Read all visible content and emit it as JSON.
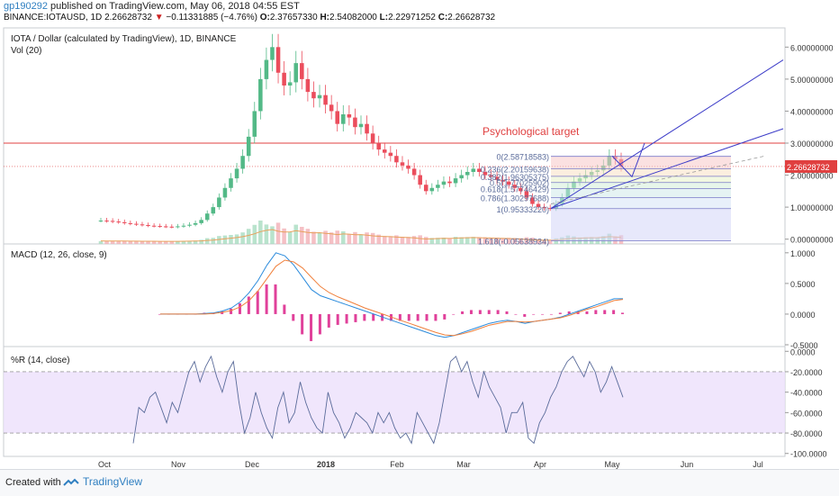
{
  "header": {
    "user": "gp190292",
    "published_text": "published on TradingView.com, May 06, 2018 04:55 EST",
    "symbol": "BINANCE:IOTAUSD, 1D",
    "last": "2.26628732",
    "change_arrow": "▼",
    "change": "−0.11331885 (−4.76%)",
    "o_label": "O:",
    "o_value": "2.37657330",
    "h_label": "H:",
    "h_value": "2.54082000",
    "l_label": "L:",
    "l_value": "2.22971252",
    "c_label": "C:",
    "c_value": "2.26628732"
  },
  "footer": {
    "created_with": "Created with",
    "brand": "TradingView"
  },
  "colors": {
    "up": "#53b987",
    "down": "#eb4d5c",
    "wick": "#eb4d5c",
    "ma": "#e8a15c",
    "macd": "#2b8bdc",
    "signal": "#f0803c",
    "hist": "#e0409a",
    "wr": "#5a6b9a",
    "trend": "#3c3cc8",
    "target": "#e04040",
    "price_tag": "#e04040"
  },
  "chart_data": [
    {
      "type": "line",
      "title": "IOTA / Dollar (calculated by TradingView), 1D, BINANCE",
      "subtitle": "Vol (20)",
      "x_ticks": [
        "Oct",
        "Nov",
        "Dec",
        "2018",
        "Feb",
        "Mar",
        "Apr",
        "May",
        "Jun",
        "Jul"
      ],
      "y_ticks": [
        "6.00000000",
        "5.00000000",
        "4.00000000",
        "3.00000000",
        "2.00000000",
        "1.00000000",
        "0.00000000"
      ],
      "ylim": [
        -0.15,
        6.6
      ],
      "price_label": "2.26628732",
      "annotation": "Psychological target",
      "target_level": 3.0,
      "series": [
        {
          "values": [
            0.58,
            0.57,
            0.55,
            0.53,
            0.5,
            0.48,
            0.46,
            0.44,
            0.42,
            0.41,
            0.4,
            0.39,
            0.38,
            0.4,
            0.42,
            0.45,
            0.5,
            0.6,
            0.8,
            1.0,
            1.3,
            1.6,
            1.9,
            2.2,
            2.6,
            3.2,
            4.0,
            5.0,
            5.6,
            6.0,
            5.2,
            4.8,
            4.9,
            5.5,
            5.0,
            4.6,
            4.4,
            4.5,
            4.2,
            4.0,
            3.6,
            3.9,
            3.8,
            3.5,
            3.6,
            3.3,
            3.0,
            2.8,
            2.7,
            2.6,
            2.4,
            2.3,
            2.2,
            2.0,
            1.7,
            1.5,
            1.6,
            1.7,
            1.8,
            1.75,
            1.9,
            2.0,
            2.1,
            2.2,
            2.1,
            2.0,
            1.95,
            1.85,
            1.8,
            1.7,
            1.6,
            1.5,
            1.3,
            1.1,
            1.0,
            0.97,
            0.96,
            1.1,
            1.3,
            1.6,
            1.8,
            1.9,
            2.0,
            2.1,
            2.15,
            2.3,
            2.6,
            2.5,
            2.27
          ]
        }
      ],
      "fib_levels": [
        {
          "ratio": "0",
          "label": "0(2.58718583)",
          "value": 2.587
        },
        {
          "ratio": "0.236",
          "label": "0.236(2.20159638)",
          "value": 2.2016
        },
        {
          "ratio": "0.382",
          "label": "0.382(1.96305375)",
          "value": 1.963
        },
        {
          "ratio": "0.5",
          "label": "0.5(1.77025902)",
          "value": 1.77
        },
        {
          "ratio": "0.618",
          "label": "0.618(1.57746429)",
          "value": 1.577
        },
        {
          "ratio": "0.786",
          "label": "0.786(1.30297688)",
          "value": 1.303
        },
        {
          "ratio": "1",
          "label": "1(0.95333220)",
          "value": 0.953
        },
        {
          "ratio": "1.618",
          "label": "1.618(-0.05638934)",
          "value": -0.056
        }
      ]
    },
    {
      "type": "line",
      "title": "MACD (12, 26, close, 9)",
      "y_ticks": [
        "1.0000",
        "0.5000",
        "0.0000",
        "-0.5000"
      ],
      "ylim": [
        -0.5,
        1.1
      ],
      "series": [
        {
          "values": [
            0,
            0,
            0,
            0,
            0,
            0.01,
            0.02,
            0.05,
            0.1,
            0.2,
            0.35,
            0.55,
            0.8,
            1.0,
            0.95,
            0.8,
            0.6,
            0.4,
            0.3,
            0.25,
            0.2,
            0.15,
            0.1,
            0.05,
            0,
            -0.05,
            -0.1,
            -0.15,
            -0.2,
            -0.25,
            -0.3,
            -0.35,
            -0.38,
            -0.35,
            -0.3,
            -0.25,
            -0.2,
            -0.15,
            -0.12,
            -0.1,
            -0.12,
            -0.15,
            -0.12,
            -0.1,
            -0.08,
            -0.05,
            0,
            0.05,
            0.1,
            0.15,
            0.2,
            0.25,
            0.25
          ]
        },
        {
          "values": [
            0,
            0,
            0,
            0,
            0,
            0,
            0.01,
            0.03,
            0.06,
            0.12,
            0.22,
            0.38,
            0.58,
            0.78,
            0.88,
            0.85,
            0.75,
            0.6,
            0.45,
            0.35,
            0.28,
            0.22,
            0.16,
            0.1,
            0.05,
            0,
            -0.05,
            -0.1,
            -0.15,
            -0.2,
            -0.25,
            -0.3,
            -0.34,
            -0.35,
            -0.32,
            -0.28,
            -0.23,
            -0.18,
            -0.15,
            -0.12,
            -0.12,
            -0.13,
            -0.12,
            -0.1,
            -0.08,
            -0.06,
            -0.02,
            0.03,
            0.08,
            0.12,
            0.17,
            0.22,
            0.24
          ]
        }
      ]
    },
    {
      "type": "line",
      "title": "%R (14, close)",
      "y_ticks": [
        "0.0000",
        "-20.0000",
        "-40.0000",
        "-60.0000",
        "-80.0000",
        "-100.0000"
      ],
      "ylim": [
        -102,
        2
      ],
      "bands": [
        -20,
        -80
      ],
      "series": [
        {
          "values": [
            -90,
            -55,
            -60,
            -45,
            -40,
            -55,
            -70,
            -50,
            -60,
            -40,
            -20,
            -10,
            -30,
            -15,
            -5,
            -25,
            -40,
            -20,
            -10,
            -50,
            -80,
            -65,
            -40,
            -60,
            -75,
            -85,
            -55,
            -40,
            -70,
            -60,
            -30,
            -50,
            -65,
            -75,
            -80,
            -40,
            -60,
            -70,
            -85,
            -75,
            -60,
            -65,
            -70,
            -80,
            -60,
            -70,
            -60,
            -75,
            -85,
            -80,
            -90,
            -60,
            -70,
            -80,
            -90,
            -70,
            -40,
            -10,
            -5,
            -20,
            -10,
            -30,
            -45,
            -20,
            -35,
            -45,
            -55,
            -80,
            -60,
            -60,
            -50,
            -85,
            -90,
            -70,
            -60,
            -45,
            -35,
            -20,
            -10,
            -5,
            -15,
            -25,
            -10,
            -20,
            -40,
            -30,
            -15,
            -30,
            -45
          ]
        }
      ]
    }
  ]
}
